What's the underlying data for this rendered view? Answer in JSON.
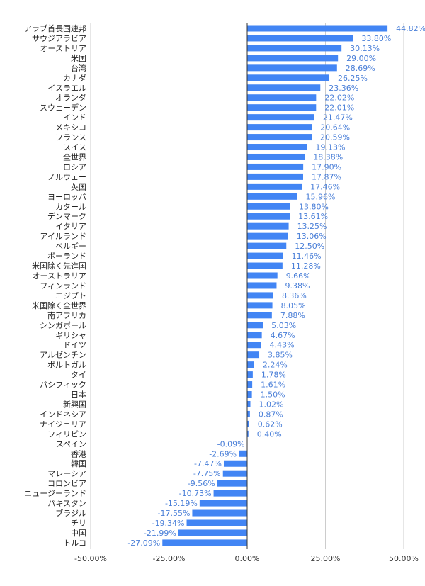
{
  "chart_data": {
    "type": "bar",
    "orientation": "horizontal",
    "categories": [
      "アラブ首長国連邦",
      "サウジアラビア",
      "オーストリア",
      "米国",
      "台湾",
      "カナダ",
      "イスラエル",
      "オランダ",
      "スウェーデン",
      "インド",
      "メキシコ",
      "フランス",
      "スイス",
      "全世界",
      "ロシア",
      "ノルウェー",
      "英国",
      "ヨーロッパ",
      "カタール",
      "デンマーク",
      "イタリア",
      "アイルランド",
      "ベルギー",
      "ポーランド",
      "米国除く先進国",
      "オーストラリア",
      "フィンランド",
      "エジプト",
      "米国除く全世界",
      "南アフリカ",
      "シンガポール",
      "ギリシャ",
      "ドイツ",
      "アルゼンチン",
      "ポルトガル",
      "タイ",
      "パシフィック",
      "日本",
      "新興国",
      "インドネシア",
      "ナイジェリア",
      "フィリピン",
      "スペイン",
      "香港",
      "韓国",
      "マレーシア",
      "コロンビア",
      "ニュージーランド",
      "パキスタン",
      "ブラジル",
      "チリ",
      "中国",
      "トルコ"
    ],
    "values": [
      44.82,
      33.8,
      30.13,
      29.0,
      28.69,
      26.25,
      23.36,
      22.02,
      22.01,
      21.47,
      20.64,
      20.59,
      19.13,
      18.38,
      17.9,
      17.87,
      17.46,
      15.96,
      13.8,
      13.61,
      13.25,
      13.06,
      12.5,
      11.46,
      11.28,
      9.66,
      9.38,
      8.36,
      8.05,
      7.88,
      5.03,
      4.67,
      4.43,
      3.85,
      2.24,
      1.78,
      1.61,
      1.5,
      1.02,
      0.87,
      0.62,
      0.4,
      -0.09,
      -2.69,
      -7.47,
      -7.75,
      -9.56,
      -10.73,
      -15.19,
      -17.55,
      -19.34,
      -21.99,
      -27.09
    ],
    "value_labels": [
      "44.82%",
      "33.80%",
      "30.13%",
      "29.00%",
      "28.69%",
      "26.25%",
      "23.36%",
      "22.02%",
      "22.01%",
      "21.47%",
      "20.64%",
      "20.59%",
      "19.13%",
      "18.38%",
      "17.90%",
      "17.87%",
      "17.46%",
      "15.96%",
      "13.80%",
      "13.61%",
      "13.25%",
      "13.06%",
      "12.50%",
      "11.46%",
      "11.28%",
      "9.66%",
      "9.38%",
      "8.36%",
      "8.05%",
      "7.88%",
      "5.03%",
      "4.67%",
      "4.43%",
      "3.85%",
      "2.24%",
      "1.78%",
      "1.61%",
      "1.50%",
      "1.02%",
      "0.87%",
      "0.62%",
      "0.40%",
      "-0.09%",
      "-2.69%",
      "-7.47%",
      "-7.75%",
      "-9.56%",
      "-10.73%",
      "-15.19%",
      "-17.55%",
      "-19.34%",
      "-21.99%",
      "-27.09%"
    ],
    "xlim": [
      -50,
      50
    ],
    "x_ticks": [
      -50,
      -25,
      0,
      25,
      50
    ],
    "x_tick_labels": [
      "-50.00%",
      "-25.00%",
      "0.00%",
      "25.00%",
      "50.00%"
    ],
    "title": "",
    "xlabel": "",
    "ylabel": "",
    "grid": true,
    "legend": "none",
    "colors": {
      "bar": "#4285f4",
      "value_label": "#4a7fd8",
      "grid": "#cccccc",
      "axis": "#333333",
      "category_label": "#222222"
    }
  }
}
